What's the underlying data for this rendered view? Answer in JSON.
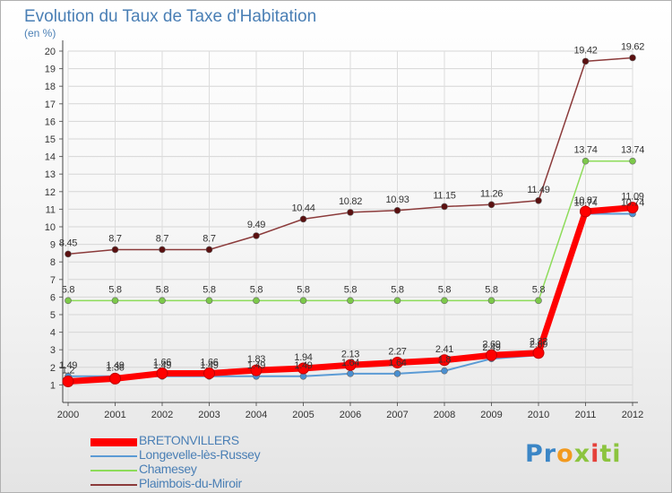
{
  "chart_data": {
    "type": "line",
    "title": "Evolution du Taux de Taxe d'Habitation",
    "unit_label": "(en %)",
    "x": [
      "2000",
      "2001",
      "2002",
      "2003",
      "2004",
      "2005",
      "2006",
      "2007",
      "2008",
      "2009",
      "2010",
      "2011",
      "2012"
    ],
    "ylim": [
      0,
      20
    ],
    "yticks": [
      1,
      2,
      3,
      4,
      5,
      6,
      7,
      8,
      9,
      10,
      11,
      12,
      13,
      14,
      15,
      16,
      17,
      18,
      19,
      20
    ],
    "grid": true,
    "legend_position": "bottom-left",
    "series": [
      {
        "name": "BRETONVILLERS",
        "color": "#ff0000",
        "marker_color": "#ff0000",
        "label_color": "#333333",
        "values": [
          1.2,
          1.36,
          1.66,
          1.66,
          1.83,
          1.94,
          2.13,
          2.27,
          2.41,
          2.69,
          2.82,
          10.87,
          11.09
        ],
        "labels": [
          "1.2",
          "1.36",
          "1.66",
          "1.66",
          "1.83",
          "1.94",
          "2.13",
          "2.27",
          "2.41",
          "2.69",
          "2.82",
          "10.87",
          "11.09"
        ]
      },
      {
        "name": "Longevelle-lès-Russey",
        "color": "#5b9bd5",
        "marker_color": "#4a8fd0",
        "label_color": "#333333",
        "values": [
          1.49,
          1.49,
          1.49,
          1.49,
          1.49,
          1.49,
          1.64,
          1.64,
          1.8,
          2.49,
          2.69,
          10.74,
          10.74
        ],
        "labels": [
          "1.49",
          "1.49",
          "1.49",
          "1.49",
          "1.49",
          "1.49",
          "1.64",
          "1.64",
          "1.8",
          "2.49",
          "2.69",
          "10.74",
          "10.74"
        ]
      },
      {
        "name": "Chamesey",
        "color": "#8ddc59",
        "marker_color": "#7cc94a",
        "label_color": "#333333",
        "values": [
          5.8,
          5.8,
          5.8,
          5.8,
          5.8,
          5.8,
          5.8,
          5.8,
          5.8,
          5.8,
          5.8,
          13.74,
          13.74
        ],
        "labels": [
          "5.8",
          "5.8",
          "5.8",
          "5.8",
          "5.8",
          "5.8",
          "5.8",
          "5.8",
          "5.8",
          "5.8",
          "5.8",
          "13.74",
          "13.74"
        ]
      },
      {
        "name": "Plaimbois-du-Miroir",
        "color": "#8b3a3a",
        "marker_color": "#5a1010",
        "label_color": "#333333",
        "values": [
          8.45,
          8.7,
          8.7,
          8.7,
          9.49,
          10.44,
          10.82,
          10.93,
          11.15,
          11.26,
          11.49,
          19.42,
          19.62
        ],
        "labels": [
          "8.45",
          "8.7",
          "8.7",
          "8.7",
          "9.49",
          "10.44",
          "10.82",
          "10.93",
          "11.15",
          "11.26",
          "11.49",
          "19.42",
          "19.62"
        ]
      }
    ]
  },
  "legend": {
    "items": [
      "BRETONVILLERS",
      "Longevelle-lès-Russey",
      "Chamesey",
      "Plaimbois-du-Miroir"
    ]
  },
  "logo": {
    "text": "Proxiti",
    "colors": [
      "#3b86c6",
      "#3b86c6",
      "#f29a1f",
      "#8cc43f",
      "#e5413a",
      "#8cc43f",
      "#8cc43f"
    ]
  }
}
